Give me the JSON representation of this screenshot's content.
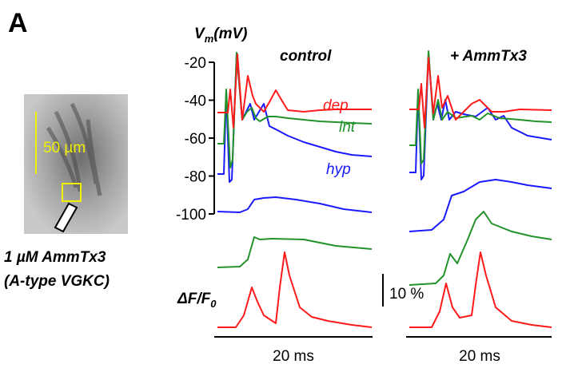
{
  "panel_label": "A",
  "y_axis": {
    "symbol": "V",
    "subscript": "m",
    "unit": "(mV)",
    "ylim": [
      -20,
      -100
    ],
    "yticks": [
      -20,
      -40,
      -60,
      -80,
      -100
    ]
  },
  "conditions": [
    "control",
    "+ AmmTx3"
  ],
  "trace_labels": {
    "dep": "dep",
    "int": "int",
    "hyp": "hyp"
  },
  "image": {
    "scale_bar": "50 µm",
    "drug": "1 µM AmmTx3",
    "target": "(A-type VGKC)"
  },
  "fluorescence_label": {
    "text": "ΔF/F",
    "subscript": "0"
  },
  "fluorescence_scale": "10 %",
  "time_scale": [
    "20 ms",
    "20 ms"
  ]
}
